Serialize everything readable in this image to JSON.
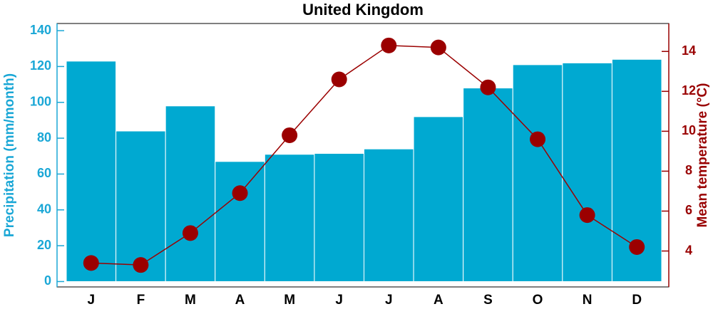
{
  "chart_data": {
    "type": "bar-line",
    "title": "United Kingdom",
    "categories": [
      "J",
      "F",
      "M",
      "A",
      "M",
      "J",
      "J",
      "A",
      "S",
      "O",
      "N",
      "D"
    ],
    "ylabel": "Precipitation (mm/month)",
    "y2label": "Mean temperature (°C)",
    "series": [
      {
        "name": "Precipitation",
        "type": "bar",
        "color": "#00a9d1",
        "axis": "y",
        "values": [
          123,
          84,
          98,
          67,
          71,
          71.5,
          74,
          92,
          108,
          121,
          122,
          124
        ]
      },
      {
        "name": "Mean temperature",
        "type": "line",
        "color": "#9b0000",
        "axis": "y2",
        "values": [
          3.4,
          3.3,
          4.9,
          6.9,
          9.8,
          12.6,
          14.3,
          14.2,
          12.2,
          9.6,
          5.8,
          4.2
        ]
      }
    ],
    "ylim": [
      -3,
      144
    ],
    "yticks": [
      0,
      20,
      40,
      60,
      80,
      100,
      120,
      140
    ],
    "ycolor": "#1aa7d6",
    "y2lim": [
      2.2,
      15.4
    ],
    "y2ticks": [
      4,
      6,
      8,
      10,
      12,
      14
    ],
    "y2color": "#990000"
  }
}
